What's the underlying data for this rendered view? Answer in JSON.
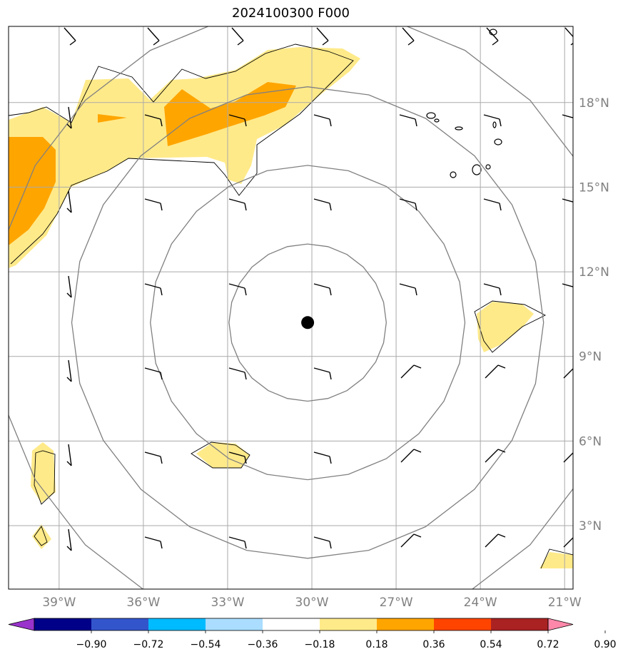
{
  "title": "2024100300 F000",
  "map": {
    "lon_range": [
      -40.8,
      -20.7
    ],
    "lat_range": [
      0.75,
      20.7
    ],
    "center": {
      "lon": -30.15,
      "lat": 10.2
    },
    "lon_ticks": [
      {
        "value": -39,
        "label": "39°W"
      },
      {
        "value": -36,
        "label": "36°W"
      },
      {
        "value": -33,
        "label": "33°W"
      },
      {
        "value": -30,
        "label": "30°W"
      },
      {
        "value": -27,
        "label": "27°W"
      },
      {
        "value": -24,
        "label": "24°W"
      },
      {
        "value": -21,
        "label": "21°W"
      }
    ],
    "lat_ticks": [
      {
        "value": 3,
        "label": "3°N"
      },
      {
        "value": 6,
        "label": "6°N"
      },
      {
        "value": 9,
        "label": "9°N"
      },
      {
        "value": 12,
        "label": "12°N"
      },
      {
        "value": 15,
        "label": "15°N"
      },
      {
        "value": 18,
        "label": "18°N"
      }
    ],
    "gridlines": true,
    "range_rings_deg": [
      2.8,
      5.6,
      8.4,
      11.2
    ]
  },
  "colorbar": {
    "colors": [
      "#9933cc",
      "#000088",
      "#3355cc",
      "#00bbff",
      "#aaddff",
      "#ffffff",
      "#ffea8a",
      "#ffa500",
      "#ff4400",
      "#aa2222",
      "#ff88aa"
    ],
    "labels": [
      "−0.90",
      "−0.72",
      "−0.54",
      "−0.36",
      "−0.18",
      "0.18",
      "0.36",
      "0.54",
      "0.72",
      "0.90"
    ]
  }
}
